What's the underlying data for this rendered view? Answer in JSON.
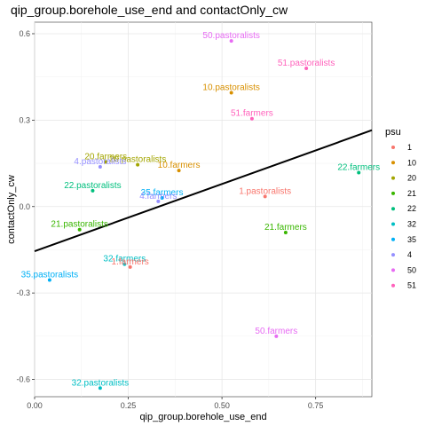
{
  "chart_data": {
    "type": "scatter",
    "title": "qip_group.borehole_use_end and contactOnly_cw",
    "xlabel": "qip_group.borehole_use_end",
    "ylabel": "contactOnly_cw",
    "xlim": [
      0,
      0.9
    ],
    "ylim": [
      -0.66,
      0.64
    ],
    "x_ticks": [
      "0.00",
      "0.25",
      "0.50",
      "0.75"
    ],
    "x_tick_values": [
      0,
      0.25,
      0.5,
      0.75
    ],
    "y_ticks": [
      "-0.6",
      "-0.3",
      "0.0",
      "0.3",
      "0.6"
    ],
    "y_tick_values": [
      -0.6,
      -0.3,
      0.0,
      0.3,
      0.6
    ],
    "grid": true,
    "legend_title": "psu",
    "legend_placement": "right",
    "legend": [
      {
        "name": "1",
        "color": "#F8766D"
      },
      {
        "name": "10",
        "color": "#D89000"
      },
      {
        "name": "20",
        "color": "#A3A500"
      },
      {
        "name": "21",
        "color": "#39B600"
      },
      {
        "name": "22",
        "color": "#00BF7D"
      },
      {
        "name": "32",
        "color": "#00BFC4"
      },
      {
        "name": "35",
        "color": "#00B0F6"
      },
      {
        "name": "4",
        "color": "#9590FF"
      },
      {
        "name": "50",
        "color": "#E76BF3"
      },
      {
        "name": "51",
        "color": "#FF62BC"
      }
    ],
    "points": [
      {
        "label": "50.pastoralists",
        "psu": "50",
        "x": 0.525,
        "y": 0.575
      },
      {
        "label": "51.pastoralists",
        "psu": "51",
        "x": 0.725,
        "y": 0.48
      },
      {
        "label": "10.pastoralists",
        "psu": "10",
        "x": 0.525,
        "y": 0.395
      },
      {
        "label": "51.farmers",
        "psu": "51",
        "x": 0.58,
        "y": 0.305
      },
      {
        "label": "20.farmers",
        "psu": "20",
        "x": 0.19,
        "y": 0.155
      },
      {
        "label": "20.pastoralists",
        "psu": "20",
        "x": 0.275,
        "y": 0.145
      },
      {
        "label": "4.pastoralists",
        "psu": "4",
        "x": 0.175,
        "y": 0.138
      },
      {
        "label": "10.farmers",
        "psu": "10",
        "x": 0.385,
        "y": 0.125
      },
      {
        "label": "22.farmers",
        "psu": "22",
        "x": 0.865,
        "y": 0.118
      },
      {
        "label": "22.pastoralists",
        "psu": "22",
        "x": 0.155,
        "y": 0.055
      },
      {
        "label": "1.pastoralists",
        "psu": "1",
        "x": 0.615,
        "y": 0.035
      },
      {
        "label": "35.farmers",
        "psu": "35",
        "x": 0.34,
        "y": 0.03
      },
      {
        "label": "4.farmers",
        "psu": "4",
        "x": 0.33,
        "y": 0.018
      },
      {
        "label": "21.pastoralists",
        "psu": "21",
        "x": 0.12,
        "y": -0.08
      },
      {
        "label": "21.farmers",
        "psu": "21",
        "x": 0.67,
        "y": -0.09
      },
      {
        "label": "32.farmers",
        "psu": "32",
        "x": 0.24,
        "y": -0.2
      },
      {
        "label": "1.farmers",
        "psu": "1",
        "x": 0.255,
        "y": -0.21
      },
      {
        "label": "35.pastoralists",
        "psu": "35",
        "x": 0.04,
        "y": -0.255
      },
      {
        "label": "50.farmers",
        "psu": "50",
        "x": 0.645,
        "y": -0.45
      },
      {
        "label": "32.pastoralists",
        "psu": "32",
        "x": 0.175,
        "y": -0.63
      }
    ],
    "trend_line": {
      "x": [
        0,
        0.9
      ],
      "y": [
        -0.155,
        0.265
      ]
    }
  }
}
